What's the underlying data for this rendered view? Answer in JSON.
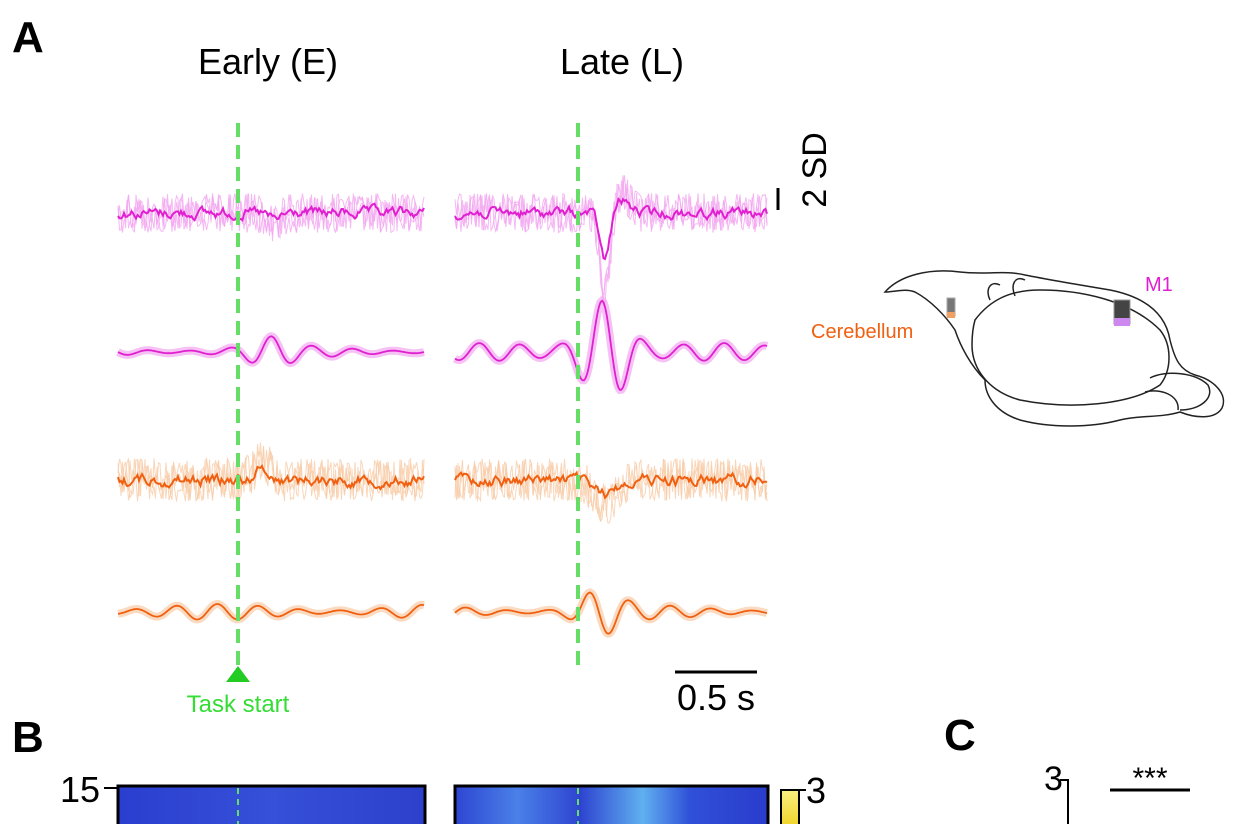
{
  "panel_a": {
    "label": "A",
    "conditions": [
      "Early (E)",
      "Late (L)"
    ],
    "amplitude_scale": "2 SD",
    "time_scale": "0.5 s",
    "event_label": "Task start",
    "regions": [
      "M1",
      "Cerebellum"
    ]
  },
  "panel_b": {
    "label": "B",
    "y_top_tick": 15,
    "colorbar_max": 3
  },
  "panel_c": {
    "label": "C",
    "y_top_tick": 3,
    "significance": "***"
  }
}
